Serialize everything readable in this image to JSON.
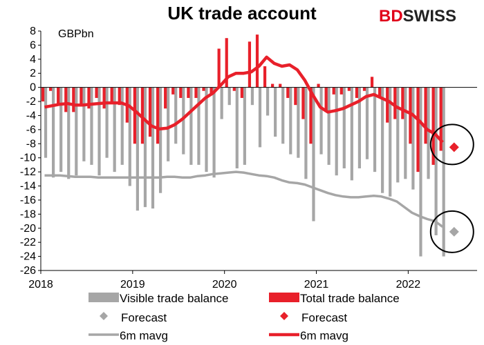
{
  "title": "UK trade account",
  "logo": {
    "text_red": "BD",
    "text_dark": "SWISS"
  },
  "colors": {
    "visible": "#a6a6a6",
    "total": "#e8202a",
    "visible_line": "#a6a6a6",
    "total_line": "#e8202a",
    "circle": "#000000"
  },
  "chart_data": {
    "type": "bar",
    "unit_label": "GBPbn",
    "ylim": [
      -26,
      8
    ],
    "yticks": [
      8,
      6,
      4,
      2,
      0,
      -2,
      -4,
      -6,
      -8,
      -10,
      -12,
      -14,
      -16,
      -18,
      -20,
      -22,
      -24,
      -26
    ],
    "xticks": [
      {
        "label": "2018",
        "t": 0
      },
      {
        "label": "2019",
        "t": 12
      },
      {
        "label": "2020",
        "t": 24
      },
      {
        "label": "2021",
        "t": 36
      },
      {
        "label": "2022",
        "t": 48
      }
    ],
    "grid": false,
    "legend_position": "bottom",
    "series": [
      {
        "name": "Visible trade balance",
        "kind": "bar",
        "values": [
          -10.0,
          -12.8,
          -12.0,
          -13.0,
          -12.5,
          -10.5,
          -11.0,
          -12.5,
          -10.0,
          -12.0,
          -11.0,
          -14.0,
          -17.5,
          -17.0,
          -17.2,
          -15.0,
          -10.5,
          -8.0,
          -9.5,
          -11.0,
          -11.0,
          -12.0,
          -12.8,
          -4.5,
          -2.5,
          -11.5,
          -11.0,
          -2.5,
          -8.5,
          -4.0,
          -7.0,
          -8.0,
          -9.5,
          -10.0,
          -13.0,
          -19.0,
          -9.5,
          -11.0,
          -12.5,
          -11.5,
          -13.2,
          -11.5,
          -10.2,
          -12.0,
          -15.0,
          -15.5,
          -13.5,
          -13.0,
          -14.5,
          -24.0,
          -13.0,
          -21.0,
          -24.0
        ]
      },
      {
        "name": "Total trade balance",
        "kind": "bar",
        "values": [
          -2.0,
          -0.5,
          -2.5,
          -3.5,
          -3.5,
          -2.5,
          -3.0,
          -1.5,
          -3.0,
          -2.0,
          -2.5,
          -5.0,
          -8.0,
          -8.0,
          -7.0,
          -8.0,
          -3.0,
          -1.0,
          -1.5,
          -1.5,
          -1.5,
          -0.5,
          -1.0,
          5.5,
          7.0,
          -0.5,
          -1.5,
          6.5,
          7.5,
          3.0,
          0.5,
          0.5,
          -1.5,
          -2.5,
          -4.5,
          -8.0,
          0.5,
          -3.5,
          -1.0,
          -1.0,
          -0.5,
          -1.5,
          -0.5,
          1.5,
          -1.5,
          -5.0,
          -4.5,
          -4.5,
          -8.0,
          -12.0,
          -8.0,
          -11.0,
          -9.0
        ]
      },
      {
        "name": "6m mavg",
        "kind": "line",
        "of": "Visible trade balance",
        "values": [
          -12.5,
          -12.5,
          -12.5,
          -12.6,
          -12.7,
          -12.7,
          -12.7,
          -12.8,
          -12.8,
          -12.8,
          -12.8,
          -12.8,
          -12.8,
          -12.8,
          -12.8,
          -12.8,
          -12.7,
          -12.7,
          -12.8,
          -12.8,
          -12.6,
          -12.5,
          -12.3,
          -12.2,
          -12.1,
          -12.0,
          -12.1,
          -12.3,
          -12.5,
          -12.6,
          -12.8,
          -13.2,
          -13.5,
          -13.6,
          -13.8,
          -14.2,
          -14.6,
          -15.0,
          -15.3,
          -15.5,
          -15.6,
          -15.6,
          -15.5,
          -15.4,
          -15.5,
          -15.8,
          -16.2,
          -17.0,
          -17.8,
          -18.3,
          -18.7,
          -19.0,
          -19.8
        ]
      },
      {
        "name": "6m mavg",
        "kind": "line",
        "of": "Total trade balance",
        "values": [
          -2.8,
          -2.6,
          -2.4,
          -2.3,
          -2.5,
          -2.5,
          -2.4,
          -2.3,
          -2.2,
          -2.2,
          -2.2,
          -2.6,
          -3.5,
          -4.5,
          -5.5,
          -5.9,
          -5.8,
          -5.3,
          -4.5,
          -3.5,
          -2.5,
          -1.5,
          -0.8,
          0.3,
          1.5,
          2.0,
          2.0,
          2.2,
          3.0,
          4.3,
          3.4,
          3.0,
          3.2,
          2.5,
          1.0,
          -1.0,
          -2.8,
          -3.5,
          -3.3,
          -3.0,
          -2.5,
          -2.0,
          -1.3,
          -1.0,
          -1.5,
          -2.0,
          -2.8,
          -3.3,
          -3.8,
          -4.8,
          -6.0,
          -6.6,
          -7.8
        ]
      },
      {
        "name": "Forecast",
        "kind": "point",
        "of": "Visible trade balance",
        "t": 54,
        "value": -20.5
      },
      {
        "name": "Forecast",
        "kind": "point",
        "of": "Total trade balance",
        "t": 54,
        "value": -8.5
      }
    ]
  },
  "legend": [
    {
      "label": "Visible trade balance",
      "swatch": "bar",
      "color": "#a6a6a6"
    },
    {
      "label": "Total trade balance",
      "swatch": "bar",
      "color": "#e8202a"
    },
    {
      "label": "Forecast",
      "swatch": "diamond",
      "color": "#a6a6a6"
    },
    {
      "label": "Forecast",
      "swatch": "diamond",
      "color": "#e8202a"
    },
    {
      "label": "6m mavg",
      "swatch": "line",
      "color": "#a6a6a6"
    },
    {
      "label": "6m mavg",
      "swatch": "line",
      "color": "#e8202a"
    }
  ]
}
